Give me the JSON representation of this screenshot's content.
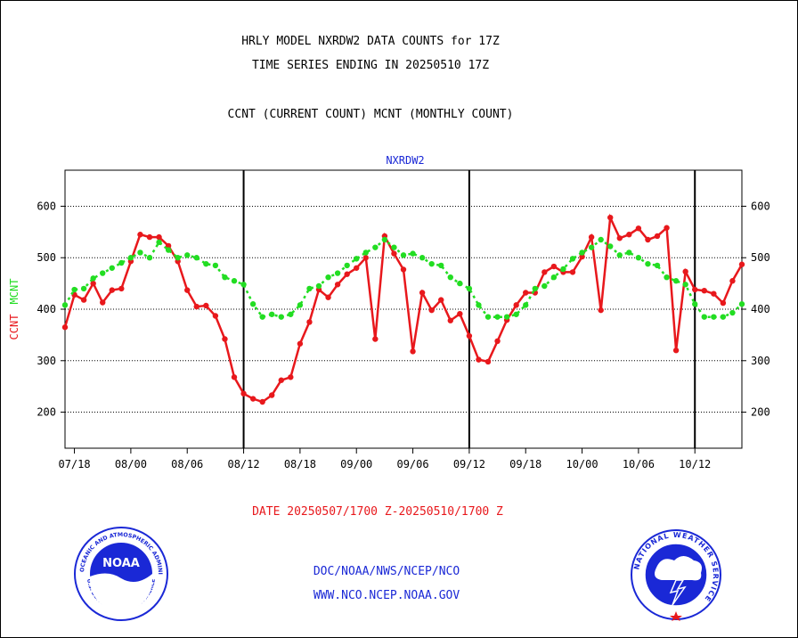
{
  "header": {
    "title_line1": "HRLY MODEL NXRDW2 DATA COUNTS for 17Z",
    "title_line2": "TIME SERIES ENDING IN 20250510 17Z",
    "subtitle": "CCNT (CURRENT COUNT) MCNT (MONTHLY COUNT)"
  },
  "footer": {
    "date_range": "DATE 20250507/1700 Z-20250510/1700 Z",
    "org": "DOC/NOAA/NWS/NCEP/NCO",
    "url": "WWW.NCO.NCEP.NOAA.GOV"
  },
  "logos": {
    "noaa_text": "NOAA",
    "noaa_ring_text": "NATIONAL OCEANIC AND ATMOSPHERIC ADMINISTRATION",
    "noaa_ring_text_bottom": "U.S. DEPARTMENT OF COMMERCE",
    "nws_ring_text": "NATIONAL WEATHER SERVICE"
  },
  "colors": {
    "ccnt": "#e8181c",
    "mcnt": "#22dd22",
    "plot_title": "#1a28d6",
    "grid": "#000000"
  },
  "chart_data": {
    "type": "line",
    "title": "NXRDW2",
    "ylabel_ccnt": "CCNT",
    "ylabel_mcnt": "MCNT",
    "x_tick_labels": [
      "07/18",
      "08/00",
      "08/06",
      "08/12",
      "08/18",
      "09/00",
      "09/06",
      "09/12",
      "09/18",
      "10/00",
      "10/06",
      "10/12"
    ],
    "x_tick_hours": [
      1,
      7,
      13,
      19,
      25,
      31,
      37,
      43,
      49,
      55,
      61,
      67
    ],
    "x_range": [
      0,
      72
    ],
    "day_boundaries": [
      19,
      43,
      67
    ],
    "ylim": [
      130,
      670
    ],
    "y_ticks": [
      200,
      300,
      400,
      500,
      600
    ],
    "grid": "horizontal dotted",
    "series": [
      {
        "name": "CCNT",
        "color": "#e8181c",
        "style": "solid",
        "values": [
          365,
          428,
          418,
          450,
          413,
          437,
          440,
          493,
          545,
          540,
          540,
          523,
          493,
          437,
          405,
          407,
          387,
          342,
          268,
          236,
          226,
          220,
          233,
          262,
          268,
          333,
          375,
          438,
          423,
          448,
          468,
          480,
          500,
          342,
          542,
          508,
          477,
          318,
          432,
          398,
          418,
          378,
          391,
          348,
          302,
          298,
          338,
          379,
          408,
          432,
          432,
          472,
          483,
          472,
          472,
          502,
          540,
          398,
          578,
          538,
          545,
          557,
          535,
          542,
          558,
          320,
          473,
          438,
          436,
          430,
          412,
          455,
          487
        ]
      },
      {
        "name": "MCNT",
        "color": "#22dd22",
        "style": "dotted",
        "values": [
          408,
          438,
          440,
          460,
          470,
          480,
          490,
          500,
          510,
          500,
          530,
          515,
          500,
          505,
          500,
          488,
          485,
          462,
          455,
          448,
          410,
          385,
          390,
          385,
          390,
          408,
          440,
          445,
          462,
          470,
          485,
          498,
          510,
          520,
          535,
          520,
          505,
          508,
          500,
          488,
          485,
          462,
          450,
          440,
          408,
          385,
          385,
          385,
          390,
          408,
          440,
          445,
          462,
          478,
          498,
          510,
          520,
          535,
          522,
          505,
          510,
          500,
          488,
          485,
          462,
          455,
          448,
          410,
          385,
          385,
          385,
          393,
          410
        ]
      }
    ]
  }
}
